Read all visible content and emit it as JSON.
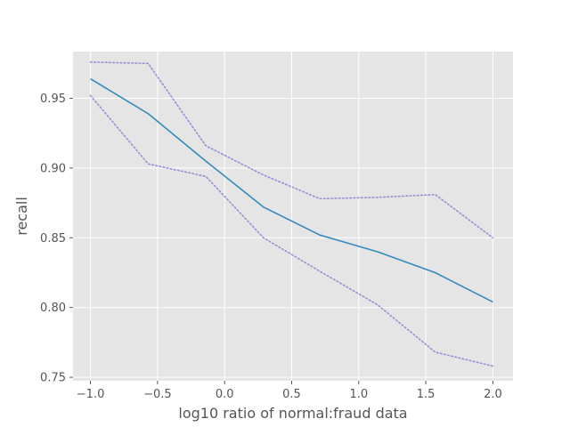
{
  "chart_data": {
    "type": "line",
    "title": "",
    "xlabel": "log10 ratio of normal:fraud data",
    "ylabel": "recall",
    "xlim": [
      -1.13,
      2.15
    ],
    "ylim": [
      0.7475,
      0.9835
    ],
    "xticks": [
      -1.0,
      -0.5,
      0.0,
      0.5,
      1.0,
      1.5,
      2.0
    ],
    "xtick_labels": [
      "−1.0",
      "−0.5",
      "0.0",
      "0.5",
      "1.0",
      "1.5",
      "2.0"
    ],
    "yticks": [
      0.75,
      0.8,
      0.85,
      0.9,
      0.95
    ],
    "ytick_labels": [
      "0.75",
      "0.80",
      "0.85",
      "0.90",
      "0.95"
    ],
    "grid": true,
    "background": "#e5e5e5",
    "grid_color": "#ffffff",
    "series": [
      {
        "style": "solid",
        "color": "#348abd",
        "x": [
          -1.0,
          -0.57,
          -0.14,
          0.29,
          0.71,
          1.14,
          1.57,
          2.0
        ],
        "y": [
          0.964,
          0.939,
          0.905,
          0.872,
          0.852,
          0.84,
          0.825,
          0.804
        ]
      },
      {
        "style": "dotted",
        "color": "#988ed5",
        "x": [
          -1.0,
          -0.57,
          -0.14,
          0.29,
          0.71,
          1.14,
          1.57,
          2.0
        ],
        "y": [
          0.976,
          0.975,
          0.916,
          0.895,
          0.878,
          0.879,
          0.881,
          0.85
        ]
      },
      {
        "style": "dotted",
        "color": "#988ed5",
        "x": [
          -1.0,
          -0.57,
          -0.14,
          0.29,
          0.71,
          1.14,
          1.57,
          2.0
        ],
        "y": [
          0.952,
          0.903,
          0.894,
          0.85,
          0.826,
          0.802,
          0.768,
          0.758
        ]
      }
    ]
  }
}
